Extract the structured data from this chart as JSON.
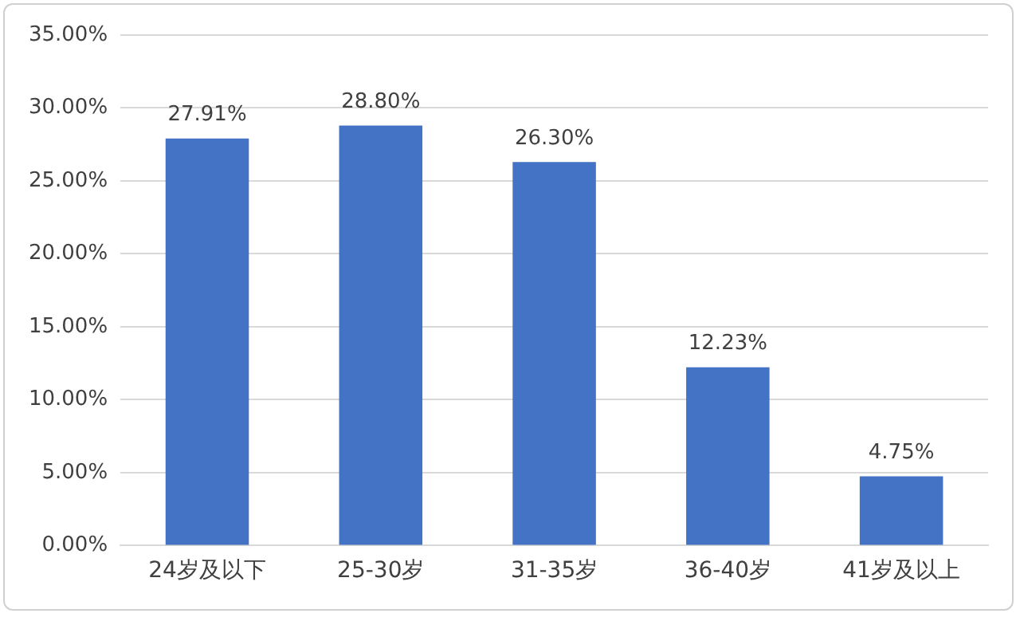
{
  "chart_data": {
    "type": "bar",
    "categories": [
      "24岁及以下",
      "25-30岁",
      "31-35岁",
      "36-40岁",
      "41岁及以上"
    ],
    "values": [
      27.91,
      28.8,
      26.3,
      12.23,
      4.75
    ],
    "value_labels": [
      "27.91%",
      "28.80%",
      "26.30%",
      "12.23%",
      "4.75%"
    ],
    "color": "#4472c4",
    "ylim": [
      0,
      35
    ],
    "yticks": [
      {
        "value": 0,
        "label": "0.00%"
      },
      {
        "value": 5,
        "label": "5.00%"
      },
      {
        "value": 10,
        "label": "10.00%"
      },
      {
        "value": 15,
        "label": "15.00%"
      },
      {
        "value": 20,
        "label": "20.00%"
      },
      {
        "value": 25,
        "label": "25.00%"
      },
      {
        "value": 30,
        "label": "30.00%"
      },
      {
        "value": 35,
        "label": "35.00%"
      }
    ],
    "grid": "y"
  }
}
